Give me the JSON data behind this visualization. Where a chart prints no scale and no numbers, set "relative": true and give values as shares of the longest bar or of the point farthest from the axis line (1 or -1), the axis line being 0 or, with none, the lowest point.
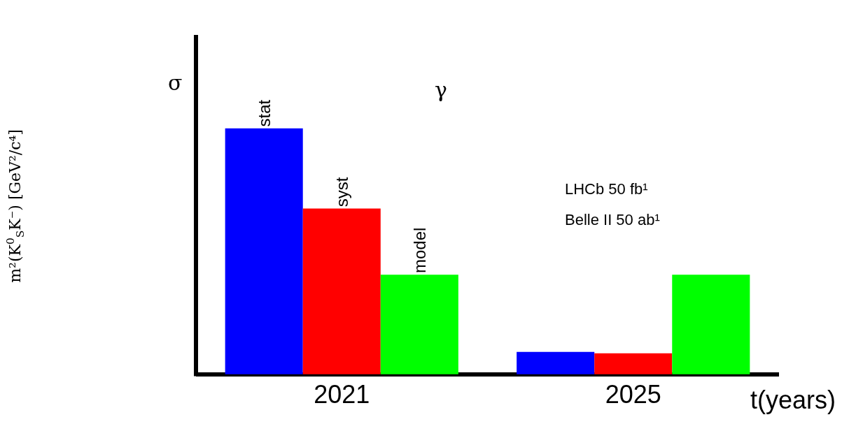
{
  "chart_data": {
    "type": "bar",
    "relative": true,
    "ylabel": "σ",
    "xlabel": "t(years)",
    "categories": [
      "2021",
      "2025"
    ],
    "series": [
      {
        "name": "stat",
        "color": "#0000ff",
        "values": [
          1,
          0.091
        ]
      },
      {
        "name": "syst",
        "color": "#ff0000",
        "values": [
          0.674,
          0.085
        ]
      },
      {
        "name": "model",
        "color": "#00ff00",
        "values": [
          0.405,
          0.405
        ]
      }
    ],
    "annotations": [
      "γ",
      "LHCb 50 fb¹",
      "Belle II 50 ab¹",
      "m²(K$^{0}$$_{S}$K⁻) [GeV²/c⁴]"
    ],
    "legend": false
  }
}
